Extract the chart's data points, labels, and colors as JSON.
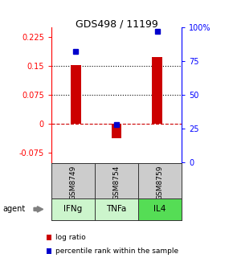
{
  "title": "GDS498 / 11199",
  "samples": [
    "GSM8749",
    "GSM8754",
    "GSM8759"
  ],
  "agents": [
    "IFNg",
    "TNFa",
    "IL4"
  ],
  "log_ratios": [
    0.152,
    -0.038,
    0.172
  ],
  "percentile_ranks": [
    82,
    28,
    97
  ],
  "ylim_left": [
    -0.1,
    0.25
  ],
  "left_ticks": [
    -0.075,
    0,
    0.075,
    0.15,
    0.225
  ],
  "left_tick_labels": [
    "-0.075",
    "0",
    "0.075",
    "0.15",
    "0.225"
  ],
  "right_ticks": [
    0,
    25,
    50,
    75,
    100
  ],
  "right_tick_labels": [
    "0",
    "25",
    "50",
    "75",
    "100%"
  ],
  "hlines": [
    0.075,
    0.15
  ],
  "bar_color": "#cc0000",
  "dot_color": "#0000cc",
  "agent_colors": [
    "#b8f0b8",
    "#b8f0b8",
    "#44cc44"
  ],
  "sample_bg": "#cccccc",
  "zero_line_color": "#cc0000",
  "bar_width": 0.25,
  "box_edge_color": "#333333"
}
